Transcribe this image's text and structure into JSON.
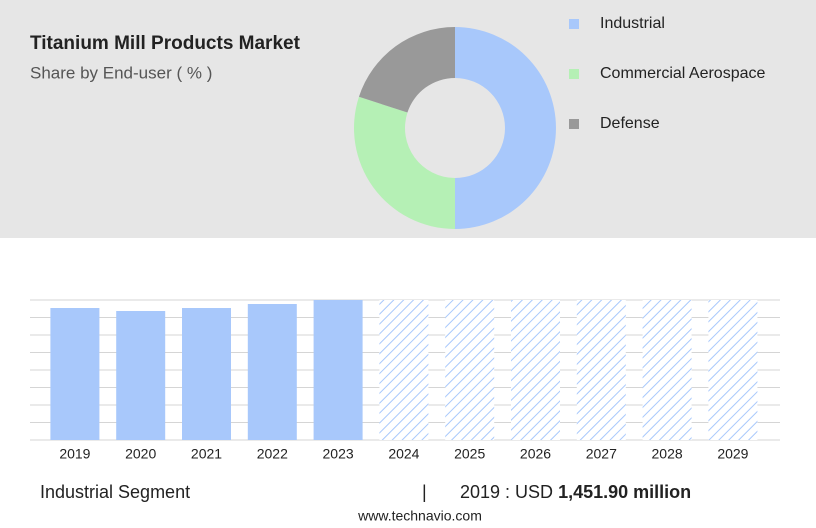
{
  "chart_data": [
    {
      "type": "donut",
      "title": "Titanium Mill Products Market",
      "subtitle": "Share by End-user ( % )",
      "categories": [
        "Industrial",
        "Commercial Aerospace",
        "Defense"
      ],
      "values": [
        50,
        30,
        20
      ],
      "colors": [
        "#a8c8fb",
        "#b5f0b5",
        "#999999"
      ]
    },
    {
      "type": "bar",
      "categories": [
        "2019",
        "2020",
        "2021",
        "2022",
        "2023",
        "2024",
        "2025",
        "2026",
        "2027",
        "2028",
        "2029"
      ],
      "values": [
        1451.9,
        1419,
        1452,
        1496,
        1540,
        null,
        null,
        null,
        null,
        null,
        null
      ],
      "color": "#a8c8fb",
      "ylim": [
        0,
        1540
      ]
    }
  ],
  "footer": {
    "segment": "Industrial Segment",
    "separator": "|",
    "highlight_label": "2019 : USD",
    "highlight_value": "1,451.90 million"
  },
  "source": "www.technavio.com"
}
